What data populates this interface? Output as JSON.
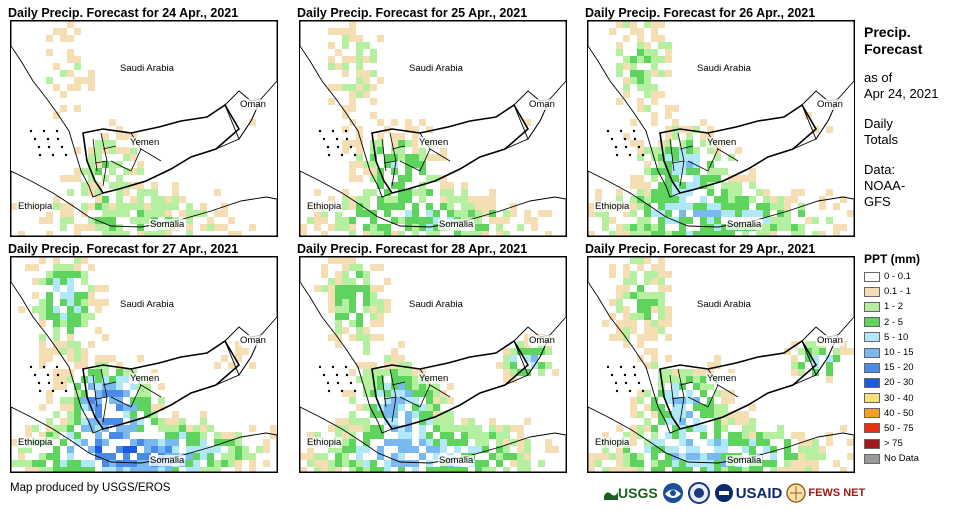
{
  "panels": [
    {
      "id": "p1",
      "title": "Daily Precip. Forecast for 24 Apr., 2021",
      "intensity": 0.15,
      "seed": 11
    },
    {
      "id": "p2",
      "title": "Daily Precip. Forecast for 25 Apr., 2021",
      "intensity": 0.35,
      "seed": 23
    },
    {
      "id": "p3",
      "title": "Daily Precip. Forecast for 26 Apr., 2021",
      "intensity": 0.55,
      "seed": 37
    },
    {
      "id": "p4",
      "title": "Daily Precip. Forecast for 27 Apr., 2021",
      "intensity": 0.95,
      "seed": 41
    },
    {
      "id": "p5",
      "title": "Daily Precip. Forecast for 28 Apr., 2021",
      "intensity": 0.7,
      "seed": 53
    },
    {
      "id": "p6",
      "title": "Daily Precip. Forecast for 29 Apr., 2021",
      "intensity": 0.6,
      "seed": 67
    }
  ],
  "country_labels": {
    "saudi_arabia": "Saudi Arabia",
    "oman": "Oman",
    "yemen": "Yemen",
    "ethiopia": "Ethiopia",
    "somalia": "Somalia"
  },
  "side": {
    "title_line1": "Precip.",
    "title_line2": "Forecast",
    "asof_line1": "as of",
    "asof_line2": "Apr 24, 2021",
    "totals_line1": "Daily",
    "totals_line2": "Totals",
    "data_line1": "Data:",
    "data_line2": "NOAA-",
    "data_line3": "GFS"
  },
  "legend": {
    "title": "PPT (mm)",
    "items": [
      {
        "label": "0 - 0.1",
        "color": "#ffffff"
      },
      {
        "label": "0.1 - 1",
        "color": "#f5deb3"
      },
      {
        "label": "1 - 2",
        "color": "#b5f0a0"
      },
      {
        "label": "2 - 5",
        "color": "#5ed45e"
      },
      {
        "label": "5 - 10",
        "color": "#b0e8f8"
      },
      {
        "label": "10 - 15",
        "color": "#7ab8f0"
      },
      {
        "label": "15 - 20",
        "color": "#4a8ae8"
      },
      {
        "label": "20 - 30",
        "color": "#1e5ae0"
      },
      {
        "label": "30 - 40",
        "color": "#f8e07a"
      },
      {
        "label": "40 - 50",
        "color": "#f5a020"
      },
      {
        "label": "50 - 75",
        "color": "#e83010"
      },
      {
        "label": "> 75",
        "color": "#a01818"
      },
      {
        "label": "No Data",
        "color": "#999999"
      }
    ]
  },
  "credit": "Map produced by USGS/EROS",
  "logos": {
    "usgs": "USGS",
    "usaid": "USAID",
    "fewsnet": "FEWS NET"
  }
}
